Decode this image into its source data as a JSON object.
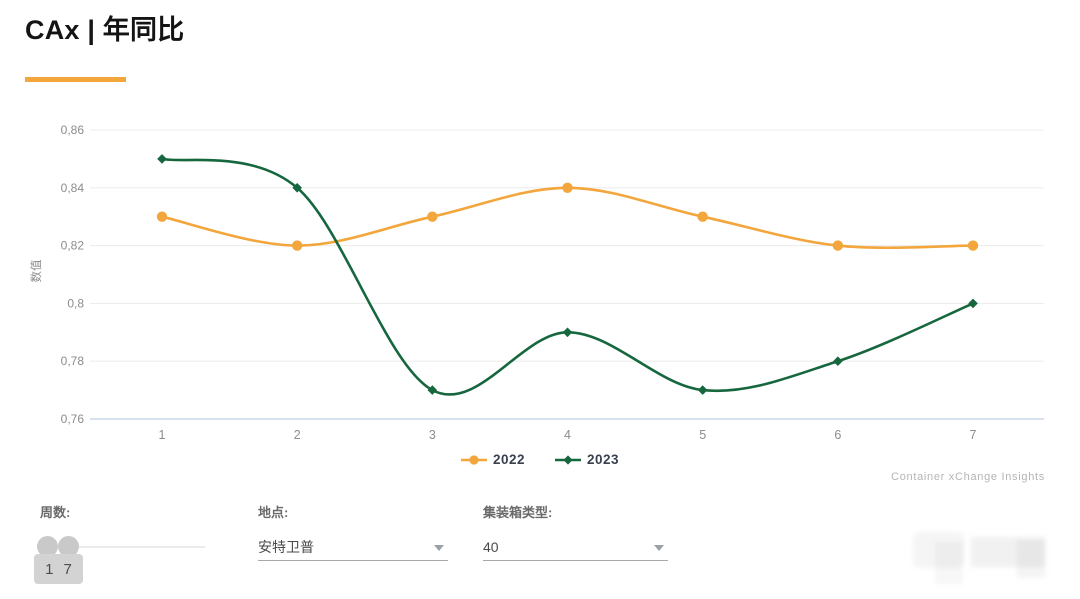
{
  "header": {
    "title": "CAx | 年同比",
    "accent_color": "#F2A63C"
  },
  "chart_data": {
    "type": "line",
    "title": "CAx | 年同比",
    "x": [
      1,
      2,
      3,
      4,
      5,
      6,
      7
    ],
    "xlabel": "",
    "ylabel": "数值",
    "ylim": [
      0.76,
      0.86
    ],
    "y_ticks": [
      0.86,
      0.84,
      0.82,
      0.8,
      0.78,
      0.76
    ],
    "y_tick_labels": [
      "0,86",
      "0,84",
      "0,82",
      "0,8",
      "0,78",
      "0,76"
    ],
    "grid": true,
    "smooth": true,
    "legend_position": "bottom",
    "axis_line_color": "#ccd7ec",
    "grid_color": "#ededed",
    "tick_color": "#8c8c8c",
    "series": [
      {
        "name": "2022",
        "color": "#F2A63C",
        "marker": "circle",
        "values": [
          0.83,
          0.82,
          0.83,
          0.84,
          0.83,
          0.82,
          0.82
        ]
      },
      {
        "name": "2023",
        "color": "#17673E",
        "marker": "diamond",
        "values": [
          0.85,
          0.84,
          0.77,
          0.79,
          0.77,
          0.78,
          0.8
        ]
      }
    ]
  },
  "watermark": "Container xChange Insights",
  "filters": {
    "weeks": {
      "label": "周数:",
      "min": "1",
      "max": "7"
    },
    "location": {
      "label": "地点:",
      "value": "安特卫普"
    },
    "container_type": {
      "label": "集装箱类型:",
      "value": "40"
    }
  }
}
